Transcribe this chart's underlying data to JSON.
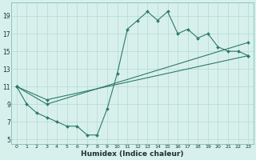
{
  "xlabel": "Humidex (Indice chaleur)",
  "background_color": "#d8f0ec",
  "grid_color": "#b8ddd6",
  "line_color": "#2d7a6a",
  "xlim": [
    -0.5,
    23.5
  ],
  "ylim": [
    4.5,
    20.5
  ],
  "xticks": [
    0,
    1,
    2,
    3,
    4,
    5,
    6,
    7,
    8,
    9,
    10,
    11,
    12,
    13,
    14,
    15,
    16,
    17,
    18,
    19,
    20,
    21,
    22,
    23
  ],
  "yticks": [
    5,
    7,
    9,
    11,
    13,
    15,
    17,
    19
  ],
  "line1_x": [
    0,
    1,
    2,
    3,
    4,
    5,
    6,
    7,
    8,
    9,
    10,
    11,
    12,
    13,
    14,
    15,
    16,
    17,
    18,
    19,
    20,
    21,
    22,
    23
  ],
  "line1_y": [
    11,
    9,
    8,
    7.5,
    7,
    6.5,
    6.5,
    5.5,
    5.5,
    8.5,
    12.5,
    17.5,
    18.5,
    19.5,
    18.5,
    19.5,
    17,
    17.5,
    16.5,
    17,
    15.5,
    15,
    15,
    14.5
  ],
  "line2_x": [
    0,
    3,
    23
  ],
  "line2_y": [
    11,
    9,
    16
  ],
  "line3_x": [
    0,
    3,
    23
  ],
  "line3_y": [
    11,
    9.5,
    14.5
  ]
}
